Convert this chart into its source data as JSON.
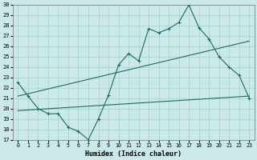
{
  "xlabel": "Humidex (Indice chaleur)",
  "xlim": [
    -0.5,
    23.5
  ],
  "ylim": [
    17,
    30
  ],
  "yticks": [
    17,
    18,
    19,
    20,
    21,
    22,
    23,
    24,
    25,
    26,
    27,
    28,
    29,
    30
  ],
  "xticks": [
    0,
    1,
    2,
    3,
    4,
    5,
    6,
    7,
    8,
    9,
    10,
    11,
    12,
    13,
    14,
    15,
    16,
    17,
    18,
    19,
    20,
    21,
    22,
    23
  ],
  "bg_color": "#cce9e9",
  "grid_color": "#aad4d4",
  "line_color": "#1a6b60",
  "line1_x": [
    0,
    1,
    2,
    3,
    4,
    5,
    6,
    7,
    8,
    9,
    10,
    11,
    12,
    13,
    14,
    15,
    16,
    17,
    18,
    19,
    20,
    21,
    22,
    23
  ],
  "line1_y": [
    22.5,
    21.2,
    20.0,
    19.5,
    19.5,
    18.2,
    17.8,
    17.0,
    19.0,
    21.3,
    24.2,
    25.3,
    24.6,
    27.7,
    27.3,
    27.7,
    28.3,
    30.0,
    27.8,
    26.7,
    25.0,
    24.0,
    23.2,
    21.0
  ],
  "line2_x": [
    0,
    23
  ],
  "line2_y": [
    21.2,
    26.5
  ],
  "line3_x": [
    0,
    23
  ],
  "line3_y": [
    19.8,
    21.2
  ]
}
